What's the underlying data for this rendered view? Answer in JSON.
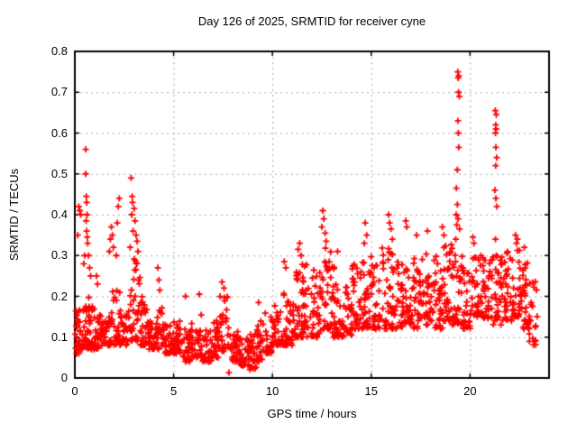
{
  "window": {
    "background": "#ffffff",
    "text_color": "#000000"
  },
  "chart_data": {
    "type": "scatter",
    "title": "Day 126 of 2025, SRMTID for receiver cyne",
    "xlabel": "GPS time / hours",
    "ylabel": "SRMTID / TECUs",
    "xlim": [
      0,
      24
    ],
    "ylim": [
      0,
      0.8
    ],
    "xticks": [
      0,
      5,
      10,
      15,
      20
    ],
    "xtick_labels": [
      "0",
      "5",
      "10",
      "15",
      "20"
    ],
    "yticks": [
      0,
      0.1,
      0.2,
      0.3,
      0.4,
      0.5,
      0.6,
      0.7,
      0.8
    ],
    "ytick_labels": [
      "0",
      "0.1",
      "0.2",
      "0.3",
      "0.4",
      "0.5",
      "0.6",
      "0.7",
      "0.8"
    ],
    "legend": "none",
    "grid": {
      "show": true,
      "color": "#a8a8a8",
      "style": "dashed"
    },
    "border_color": "#000000",
    "marker": {
      "glyph": "plus",
      "color": "#ff0000",
      "size": 7
    },
    "cloud_bins": [
      [
        0.0,
        0.3,
        0.06,
        0.17,
        28
      ],
      [
        0.3,
        0.7,
        0.07,
        0.22,
        30
      ],
      [
        0.7,
        1.0,
        0.07,
        0.2,
        25
      ],
      [
        1.0,
        1.4,
        0.07,
        0.17,
        28
      ],
      [
        1.4,
        1.8,
        0.08,
        0.15,
        25
      ],
      [
        1.8,
        2.3,
        0.08,
        0.22,
        30
      ],
      [
        2.3,
        2.7,
        0.08,
        0.18,
        25
      ],
      [
        2.7,
        3.3,
        0.09,
        0.3,
        40
      ],
      [
        3.3,
        3.7,
        0.08,
        0.2,
        28
      ],
      [
        3.7,
        4.1,
        0.07,
        0.14,
        26
      ],
      [
        4.1,
        4.5,
        0.07,
        0.18,
        26
      ],
      [
        4.5,
        5.0,
        0.06,
        0.13,
        30
      ],
      [
        5.0,
        5.4,
        0.06,
        0.14,
        26
      ],
      [
        5.4,
        5.9,
        0.04,
        0.12,
        30
      ],
      [
        5.9,
        6.4,
        0.05,
        0.16,
        30
      ],
      [
        6.4,
        6.9,
        0.04,
        0.12,
        30
      ],
      [
        6.9,
        7.3,
        0.05,
        0.14,
        26
      ],
      [
        7.3,
        7.8,
        0.06,
        0.2,
        30
      ],
      [
        7.8,
        8.3,
        0.04,
        0.12,
        30
      ],
      [
        8.3,
        8.8,
        0.03,
        0.1,
        30
      ],
      [
        8.8,
        9.2,
        0.02,
        0.11,
        26
      ],
      [
        9.2,
        9.6,
        0.04,
        0.14,
        26
      ],
      [
        9.6,
        10.0,
        0.06,
        0.16,
        26
      ],
      [
        10.0,
        10.5,
        0.08,
        0.18,
        30
      ],
      [
        10.5,
        11.0,
        0.08,
        0.23,
        32
      ],
      [
        11.0,
        11.5,
        0.1,
        0.26,
        32
      ],
      [
        11.5,
        12.0,
        0.1,
        0.28,
        32
      ],
      [
        12.0,
        12.5,
        0.1,
        0.27,
        32
      ],
      [
        12.5,
        13.0,
        0.12,
        0.32,
        34
      ],
      [
        13.0,
        13.5,
        0.1,
        0.28,
        32
      ],
      [
        13.5,
        14.0,
        0.1,
        0.24,
        30
      ],
      [
        14.0,
        14.5,
        0.12,
        0.28,
        32
      ],
      [
        14.5,
        15.0,
        0.12,
        0.31,
        34
      ],
      [
        15.0,
        15.5,
        0.12,
        0.29,
        32
      ],
      [
        15.5,
        16.1,
        0.12,
        0.33,
        36
      ],
      [
        16.1,
        16.6,
        0.12,
        0.29,
        32
      ],
      [
        16.6,
        17.1,
        0.13,
        0.28,
        32
      ],
      [
        17.1,
        17.6,
        0.12,
        0.3,
        32
      ],
      [
        17.6,
        18.1,
        0.13,
        0.31,
        32
      ],
      [
        18.1,
        18.6,
        0.12,
        0.3,
        32
      ],
      [
        18.6,
        19.1,
        0.14,
        0.33,
        34
      ],
      [
        19.1,
        19.6,
        0.13,
        0.31,
        32
      ],
      [
        19.6,
        20.1,
        0.12,
        0.29,
        30
      ],
      [
        20.1,
        20.6,
        0.15,
        0.31,
        32
      ],
      [
        20.6,
        21.1,
        0.14,
        0.3,
        32
      ],
      [
        21.1,
        21.6,
        0.13,
        0.3,
        32
      ],
      [
        21.6,
        22.1,
        0.14,
        0.31,
        32
      ],
      [
        22.1,
        22.6,
        0.15,
        0.32,
        32
      ],
      [
        22.6,
        23.0,
        0.12,
        0.29,
        28
      ],
      [
        23.0,
        23.4,
        0.08,
        0.24,
        20
      ]
    ],
    "outlier_points": [
      [
        0.15,
        0.35
      ],
      [
        0.2,
        0.42
      ],
      [
        0.25,
        0.41
      ],
      [
        0.3,
        0.4
      ],
      [
        0.55,
        0.56
      ],
      [
        0.55,
        0.5
      ],
      [
        0.58,
        0.445
      ],
      [
        0.6,
        0.43
      ],
      [
        0.62,
        0.4
      ],
      [
        0.57,
        0.385
      ],
      [
        0.6,
        0.36
      ],
      [
        0.63,
        0.345
      ],
      [
        0.65,
        0.33
      ],
      [
        0.5,
        0.3
      ],
      [
        0.45,
        0.28
      ],
      [
        0.7,
        0.3
      ],
      [
        0.75,
        0.27
      ],
      [
        0.8,
        0.25
      ],
      [
        1.1,
        0.25
      ],
      [
        1.15,
        0.23
      ],
      [
        1.75,
        0.31
      ],
      [
        1.8,
        0.34
      ],
      [
        1.85,
        0.37
      ],
      [
        1.9,
        0.35
      ],
      [
        1.95,
        0.32
      ],
      [
        2.2,
        0.42
      ],
      [
        2.25,
        0.44
      ],
      [
        2.15,
        0.38
      ],
      [
        2.1,
        0.3
      ],
      [
        2.85,
        0.49
      ],
      [
        2.9,
        0.445
      ],
      [
        2.92,
        0.43
      ],
      [
        3.0,
        0.415
      ],
      [
        2.88,
        0.4
      ],
      [
        3.05,
        0.385
      ],
      [
        2.95,
        0.36
      ],
      [
        3.1,
        0.35
      ],
      [
        3.15,
        0.335
      ],
      [
        2.8,
        0.32
      ],
      [
        3.2,
        0.31
      ],
      [
        4.2,
        0.27
      ],
      [
        4.25,
        0.24
      ],
      [
        4.3,
        0.215
      ],
      [
        5.6,
        0.2
      ],
      [
        6.3,
        0.205
      ],
      [
        7.45,
        0.235
      ],
      [
        7.55,
        0.22
      ],
      [
        7.8,
        0.013
      ],
      [
        9.3,
        0.185
      ],
      [
        10.6,
        0.285
      ],
      [
        10.68,
        0.27
      ],
      [
        11.3,
        0.315
      ],
      [
        11.38,
        0.33
      ],
      [
        11.45,
        0.3
      ],
      [
        12.5,
        0.37
      ],
      [
        12.55,
        0.41
      ],
      [
        12.6,
        0.39
      ],
      [
        12.67,
        0.355
      ],
      [
        12.72,
        0.335
      ],
      [
        13.3,
        0.31
      ],
      [
        14.65,
        0.33
      ],
      [
        14.7,
        0.38
      ],
      [
        14.77,
        0.35
      ],
      [
        15.88,
        0.4
      ],
      [
        15.93,
        0.38
      ],
      [
        16.0,
        0.365
      ],
      [
        16.07,
        0.34
      ],
      [
        16.75,
        0.385
      ],
      [
        16.8,
        0.37
      ],
      [
        17.3,
        0.35
      ],
      [
        17.85,
        0.36
      ],
      [
        18.6,
        0.37
      ],
      [
        18.68,
        0.35
      ],
      [
        19.38,
        0.75
      ],
      [
        19.43,
        0.74
      ],
      [
        19.4,
        0.735
      ],
      [
        19.42,
        0.7
      ],
      [
        19.46,
        0.69
      ],
      [
        19.39,
        0.63
      ],
      [
        19.41,
        0.6
      ],
      [
        19.43,
        0.565
      ],
      [
        19.36,
        0.51
      ],
      [
        19.31,
        0.465
      ],
      [
        19.36,
        0.425
      ],
      [
        19.3,
        0.4
      ],
      [
        19.4,
        0.39
      ],
      [
        19.33,
        0.375
      ],
      [
        19.47,
        0.365
      ],
      [
        19.28,
        0.34
      ],
      [
        20.15,
        0.345
      ],
      [
        20.2,
        0.33
      ],
      [
        21.28,
        0.655
      ],
      [
        21.33,
        0.645
      ],
      [
        21.3,
        0.62
      ],
      [
        21.32,
        0.61
      ],
      [
        21.29,
        0.6
      ],
      [
        21.31,
        0.565
      ],
      [
        21.35,
        0.54
      ],
      [
        21.3,
        0.52
      ],
      [
        21.26,
        0.46
      ],
      [
        21.31,
        0.44
      ],
      [
        21.36,
        0.42
      ],
      [
        21.29,
        0.34
      ],
      [
        21.33,
        0.3
      ],
      [
        22.3,
        0.35
      ],
      [
        22.35,
        0.33
      ],
      [
        22.4,
        0.34
      ],
      [
        22.75,
        0.32
      ]
    ]
  }
}
